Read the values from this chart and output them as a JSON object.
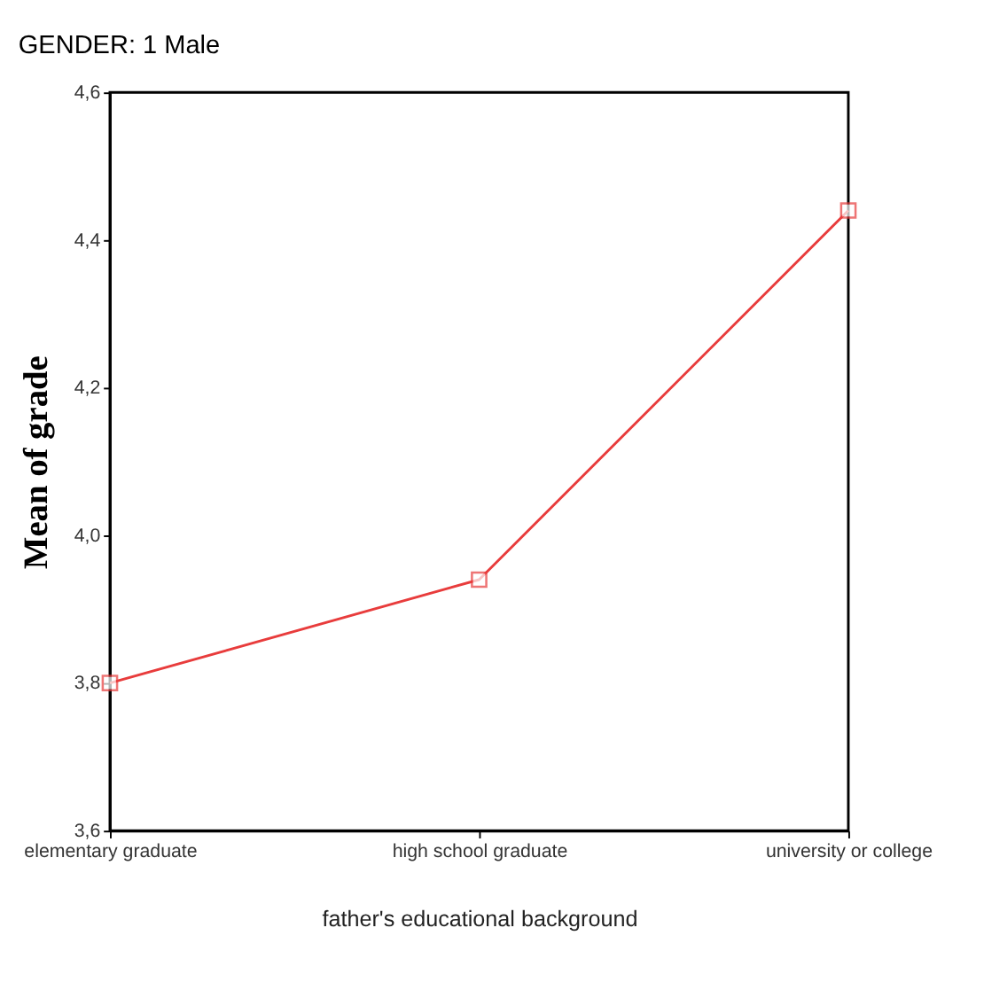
{
  "chart_data": {
    "type": "line",
    "title": "GENDER:    1  Male",
    "xlabel": "father's educational background",
    "ylabel": "Mean of  grade",
    "categories": [
      "elementary graduate",
      "high school graduate",
      "university or college"
    ],
    "series": [
      {
        "color": "#e83c3c",
        "values": [
          3.8,
          3.94,
          4.44
        ]
      }
    ],
    "ylim": [
      3.6,
      4.6
    ],
    "yticks": [
      {
        "value": 3.6,
        "label": "3,6"
      },
      {
        "value": 3.8,
        "label": "3,8"
      },
      {
        "value": 4.0,
        "label": "4,0"
      },
      {
        "value": 4.2,
        "label": "4,2"
      },
      {
        "value": 4.4,
        "label": "4,4"
      },
      {
        "value": 4.6,
        "label": "4,6"
      }
    ],
    "grid": false,
    "legend": false,
    "marker": "square",
    "line_style": "solid"
  }
}
